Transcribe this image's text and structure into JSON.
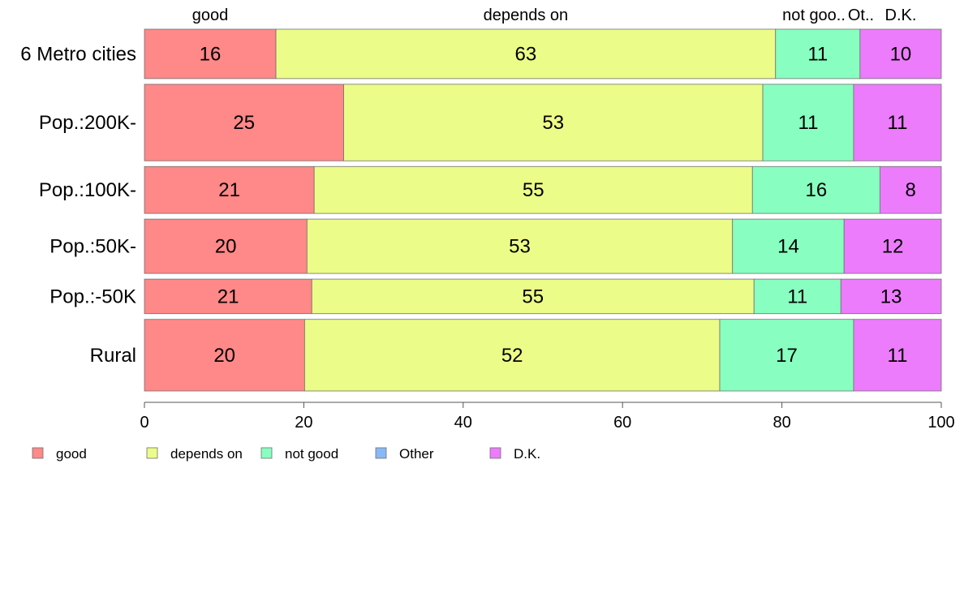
{
  "chart_data": {
    "type": "bar",
    "orientation": "horizontal",
    "stacked": true,
    "categories": [
      "6 Metro cities",
      "Pop.:200K-",
      "Pop.:100K-",
      "Pop.:50K-",
      "Pop.:-50K",
      "Rural"
    ],
    "series": [
      {
        "name": "good",
        "color": "#ff8888",
        "values": [
          16.5,
          25.0,
          21.3,
          20.4,
          21.0,
          20.1
        ]
      },
      {
        "name": "depends on",
        "color": "#ecfc88",
        "values": [
          62.7,
          52.6,
          55.0,
          53.4,
          55.5,
          52.1
        ]
      },
      {
        "name": "not good",
        "color": "#88ffc0",
        "values": [
          10.6,
          11.4,
          16.0,
          14.0,
          10.9,
          16.8
        ]
      },
      {
        "name": "Other",
        "color": "#88b8f8",
        "values": [
          0,
          0,
          0,
          0,
          0,
          0
        ]
      },
      {
        "name": "D.K.",
        "color": "#ec7cfc",
        "values": [
          10.2,
          11.0,
          7.7,
          12.2,
          12.6,
          11.0
        ]
      }
    ],
    "data_labels": [
      [
        "16",
        "63",
        "11",
        "",
        "10"
      ],
      [
        "25",
        "53",
        "11",
        "",
        "11"
      ],
      [
        "21",
        "55",
        "16",
        "",
        "8"
      ],
      [
        "20",
        "53",
        "14",
        "",
        "12"
      ],
      [
        "21",
        "55",
        "11",
        "",
        "13"
      ],
      [
        "20",
        "52",
        "17",
        "",
        "11"
      ]
    ],
    "category_weights": [
      1.0,
      1.55,
      0.95,
      1.1,
      0.7,
      1.45
    ],
    "top_labels": [
      "good",
      "depends on",
      "not goo..",
      "Ot..",
      "D.K."
    ],
    "xlim": [
      0,
      100
    ],
    "x_ticks": [
      "0",
      "20",
      "40",
      "60",
      "80",
      "100"
    ],
    "legend_position": "bottom-left",
    "title": "",
    "xlabel": "",
    "ylabel": ""
  }
}
